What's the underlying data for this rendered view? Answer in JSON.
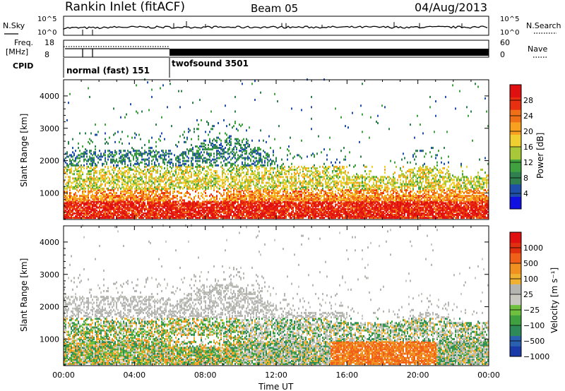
{
  "header": {
    "station": "Rankin Inlet (fitACF)",
    "beam": "Beam 05",
    "date": "04/Aug/2013"
  },
  "status_panel": {
    "nsky_label": "N.Sky",
    "nsky_ticks": [
      "10^5",
      "10^0"
    ],
    "nsearch_label": "N.Search",
    "nsearch_ticks": [
      "10^5",
      "10^0"
    ],
    "freq_label": "Freq.",
    "freq_unit": "[MHz]",
    "freq_ticks": [
      "18",
      "8"
    ],
    "nave_label": "Nave",
    "nave_ticks": [
      "60",
      "0"
    ],
    "cpid_label": "CPID",
    "cpid_segments": [
      {
        "name": "normal (fast) 151",
        "start": 0,
        "end": 6
      },
      {
        "name": "twofsound 3501",
        "start": 6,
        "end": 24
      }
    ]
  },
  "chart_data": [
    {
      "type": "heatmap",
      "name": "power",
      "ylabel": "Slant Range [km]",
      "xlabel": "",
      "xlim": [
        0,
        24
      ],
      "ylim": [
        180,
        4500
      ],
      "yticks": [
        "1000",
        "2000",
        "3000",
        "4000"
      ],
      "colorbar": {
        "label": "Power [dB]",
        "ticks": [
          "4",
          "8",
          "12",
          "16",
          "20",
          "24",
          "28"
        ],
        "range": [
          0,
          32
        ],
        "colors": [
          "#1010e0",
          "#1f4fa8",
          "#2f7f4f",
          "#3fa23f",
          "#a8c83a",
          "#f0d030",
          "#f8a020",
          "#f07018",
          "#e83010",
          "#e01010"
        ]
      }
    },
    {
      "type": "heatmap",
      "name": "velocity",
      "ylabel": "Slant Range [km]",
      "xlabel": "Time UT",
      "xlim": [
        0,
        24
      ],
      "ylim": [
        180,
        4500
      ],
      "xticks": [
        "00:00",
        "04:00",
        "08:00",
        "12:00",
        "16:00",
        "20:00",
        "00:00"
      ],
      "yticks": [
        "1000",
        "2000",
        "3000",
        "4000"
      ],
      "colorbar": {
        "label": "Velocity [m s⁻¹]",
        "ticks": [
          "1000",
          "500",
          "100",
          "25",
          "−25",
          "−100",
          "−500",
          "−1000"
        ],
        "colors": [
          "#1a3aa8",
          "#2a60b0",
          "#2f8a5a",
          "#3fa040",
          "#70c040",
          "#c8c8c0",
          "#b4b4b0",
          "#f0b030",
          "#f09020",
          "#f06018",
          "#e03010",
          "#e01010"
        ]
      }
    }
  ]
}
